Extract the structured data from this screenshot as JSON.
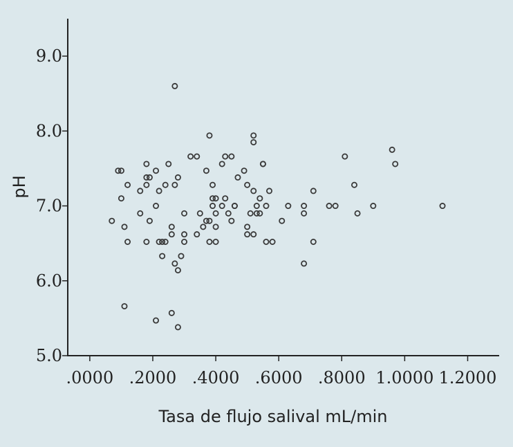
{
  "chart_data": {
    "type": "scatter",
    "title": "",
    "xlabel": "Tasa de flujo salival mL/min",
    "ylabel": "pH",
    "xlim": [
      -0.07,
      1.3
    ],
    "ylim": [
      5.0,
      9.5
    ],
    "x_ticks": [
      0,
      0.2,
      0.4,
      0.6,
      0.8,
      1.0,
      1.2
    ],
    "x_tick_labels": [
      ".0000",
      ".2000",
      ".4000",
      ".6000",
      ".8000",
      "1.0000",
      "1.2000"
    ],
    "y_ticks": [
      5.0,
      6.0,
      7.0,
      8.0,
      9.0
    ],
    "y_tick_labels": [
      "5.0",
      "6.0",
      "7.0",
      "8.0",
      "9.0"
    ],
    "grid": false,
    "points": [
      {
        "x": 0.07,
        "y": 6.8
      },
      {
        "x": 0.09,
        "y": 7.47
      },
      {
        "x": 0.1,
        "y": 7.47
      },
      {
        "x": 0.1,
        "y": 7.1
      },
      {
        "x": 0.11,
        "y": 6.72
      },
      {
        "x": 0.11,
        "y": 5.66
      },
      {
        "x": 0.12,
        "y": 7.28
      },
      {
        "x": 0.12,
        "y": 6.52
      },
      {
        "x": 0.16,
        "y": 7.2
      },
      {
        "x": 0.16,
        "y": 6.9
      },
      {
        "x": 0.18,
        "y": 7.56
      },
      {
        "x": 0.18,
        "y": 7.38
      },
      {
        "x": 0.18,
        "y": 7.28
      },
      {
        "x": 0.18,
        "y": 6.52
      },
      {
        "x": 0.19,
        "y": 7.38
      },
      {
        "x": 0.19,
        "y": 6.8
      },
      {
        "x": 0.21,
        "y": 7.0
      },
      {
        "x": 0.21,
        "y": 7.47
      },
      {
        "x": 0.21,
        "y": 5.47
      },
      {
        "x": 0.22,
        "y": 6.52
      },
      {
        "x": 0.22,
        "y": 7.2
      },
      {
        "x": 0.23,
        "y": 6.52
      },
      {
        "x": 0.23,
        "y": 6.33
      },
      {
        "x": 0.24,
        "y": 6.52
      },
      {
        "x": 0.24,
        "y": 7.28
      },
      {
        "x": 0.25,
        "y": 7.56
      },
      {
        "x": 0.26,
        "y": 6.72
      },
      {
        "x": 0.26,
        "y": 6.62
      },
      {
        "x": 0.26,
        "y": 5.57
      },
      {
        "x": 0.27,
        "y": 8.6
      },
      {
        "x": 0.27,
        "y": 7.28
      },
      {
        "x": 0.27,
        "y": 6.23
      },
      {
        "x": 0.28,
        "y": 6.14
      },
      {
        "x": 0.28,
        "y": 5.38
      },
      {
        "x": 0.28,
        "y": 7.38
      },
      {
        "x": 0.29,
        "y": 6.33
      },
      {
        "x": 0.3,
        "y": 6.52
      },
      {
        "x": 0.3,
        "y": 6.62
      },
      {
        "x": 0.3,
        "y": 6.9
      },
      {
        "x": 0.32,
        "y": 7.66
      },
      {
        "x": 0.34,
        "y": 7.66
      },
      {
        "x": 0.34,
        "y": 6.62
      },
      {
        "x": 0.35,
        "y": 6.9
      },
      {
        "x": 0.36,
        "y": 6.72
      },
      {
        "x": 0.37,
        "y": 7.47
      },
      {
        "x": 0.37,
        "y": 6.8
      },
      {
        "x": 0.38,
        "y": 6.8
      },
      {
        "x": 0.38,
        "y": 6.52
      },
      {
        "x": 0.38,
        "y": 7.94
      },
      {
        "x": 0.39,
        "y": 7.0
      },
      {
        "x": 0.39,
        "y": 7.28
      },
      {
        "x": 0.39,
        "y": 7.1
      },
      {
        "x": 0.4,
        "y": 7.1
      },
      {
        "x": 0.4,
        "y": 6.72
      },
      {
        "x": 0.4,
        "y": 6.52
      },
      {
        "x": 0.4,
        "y": 6.9
      },
      {
        "x": 0.42,
        "y": 7.0
      },
      {
        "x": 0.42,
        "y": 7.56
      },
      {
        "x": 0.43,
        "y": 7.66
      },
      {
        "x": 0.43,
        "y": 7.1
      },
      {
        "x": 0.44,
        "y": 6.9
      },
      {
        "x": 0.45,
        "y": 7.66
      },
      {
        "x": 0.45,
        "y": 6.8
      },
      {
        "x": 0.46,
        "y": 7.0
      },
      {
        "x": 0.46,
        "y": 7.0
      },
      {
        "x": 0.47,
        "y": 7.38
      },
      {
        "x": 0.49,
        "y": 7.47
      },
      {
        "x": 0.5,
        "y": 7.28
      },
      {
        "x": 0.5,
        "y": 6.72
      },
      {
        "x": 0.5,
        "y": 6.62
      },
      {
        "x": 0.51,
        "y": 6.9
      },
      {
        "x": 0.52,
        "y": 7.85
      },
      {
        "x": 0.52,
        "y": 7.94
      },
      {
        "x": 0.52,
        "y": 6.62
      },
      {
        "x": 0.52,
        "y": 7.2
      },
      {
        "x": 0.53,
        "y": 7.0
      },
      {
        "x": 0.53,
        "y": 6.9
      },
      {
        "x": 0.54,
        "y": 7.1
      },
      {
        "x": 0.54,
        "y": 6.9
      },
      {
        "x": 0.55,
        "y": 7.56
      },
      {
        "x": 0.55,
        "y": 7.56
      },
      {
        "x": 0.56,
        "y": 6.52
      },
      {
        "x": 0.56,
        "y": 7.0
      },
      {
        "x": 0.57,
        "y": 7.2
      },
      {
        "x": 0.58,
        "y": 6.52
      },
      {
        "x": 0.61,
        "y": 6.8
      },
      {
        "x": 0.63,
        "y": 7.0
      },
      {
        "x": 0.68,
        "y": 7.0
      },
      {
        "x": 0.68,
        "y": 6.9
      },
      {
        "x": 0.68,
        "y": 6.23
      },
      {
        "x": 0.71,
        "y": 6.52
      },
      {
        "x": 0.71,
        "y": 7.2
      },
      {
        "x": 0.76,
        "y": 7.0
      },
      {
        "x": 0.78,
        "y": 7.0
      },
      {
        "x": 0.81,
        "y": 7.66
      },
      {
        "x": 0.84,
        "y": 7.28
      },
      {
        "x": 0.85,
        "y": 6.9
      },
      {
        "x": 0.9,
        "y": 7.0
      },
      {
        "x": 0.96,
        "y": 7.75
      },
      {
        "x": 0.97,
        "y": 7.56
      },
      {
        "x": 1.12,
        "y": 7.0
      }
    ]
  }
}
